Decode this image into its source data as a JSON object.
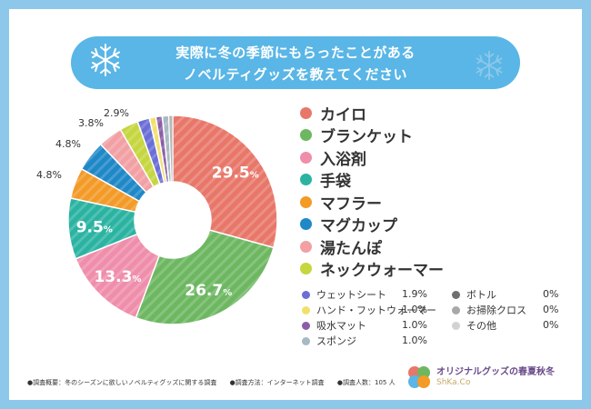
{
  "title": {
    "line1": "実際に冬の季節にもらったことがある",
    "line2": "ノベルティグッズを教えてください"
  },
  "colors": {
    "frame": "#8dc8ea",
    "title_bar": "#59b6e6"
  },
  "chart_data": {
    "type": "pie",
    "title": "実際に冬の季節にもらったことがあるノベルティグッズを教えてください",
    "unit": "%",
    "slices": [
      {
        "label": "カイロ",
        "value": 29.5,
        "color": "#e8776a",
        "display": "29.5",
        "show_inside": true
      },
      {
        "label": "ブランケット",
        "value": 26.7,
        "color": "#6db761",
        "display": "26.7",
        "show_inside": true
      },
      {
        "label": "入浴剤",
        "value": 13.3,
        "color": "#ef8eab",
        "display": "13.3",
        "show_inside": true
      },
      {
        "label": "手袋",
        "value": 9.5,
        "color": "#2bb3a2",
        "display": "9.5",
        "show_inside": true
      },
      {
        "label": "マフラー",
        "value": 4.8,
        "color": "#f39a27",
        "display": "4.8%",
        "show_inside": false
      },
      {
        "label": "マグカップ",
        "value": 4.8,
        "color": "#1f88c7",
        "display": "4.8%",
        "show_inside": false
      },
      {
        "label": "湯たんぽ",
        "value": 3.8,
        "color": "#f2a0a3",
        "display": "3.8%",
        "show_inside": false
      },
      {
        "label": "ネックウォーマー",
        "value": 2.9,
        "color": "#c5d63f",
        "display": "2.9%",
        "show_inside": false
      },
      {
        "label": "ウェットシート",
        "value": 1.9,
        "color": "#6a6ed6",
        "display": "1.9%",
        "show_inside": false
      },
      {
        "label": "ハンド・フットウォーマー",
        "value": 1.0,
        "color": "#f1e06b",
        "display": "1.0%",
        "show_inside": false
      },
      {
        "label": "吸水マット",
        "value": 1.0,
        "color": "#8c5ca8",
        "display": "1.0%",
        "show_inside": false
      },
      {
        "label": "スポンジ",
        "value": 1.0,
        "color": "#a7b9c3",
        "display": "1.0%",
        "show_inside": false
      },
      {
        "label": "ボトル",
        "value": 0,
        "color": "#6f6f6f",
        "display": "0%",
        "show_inside": false
      },
      {
        "label": "お掃除クロス",
        "value": 0,
        "color": "#a8a8a8",
        "display": "0%",
        "show_inside": false
      },
      {
        "label": "その他",
        "value": 0,
        "color": "#d2d2d2",
        "display": "0%",
        "show_inside": false
      }
    ]
  },
  "legend_main": [
    "カイロ",
    "ブランケット",
    "入浴剤",
    "手袋",
    "マフラー",
    "マグカップ",
    "湯たんぽ",
    "ネックウォーマー"
  ],
  "legend_small": {
    "left": [
      {
        "label": "ウェットシート",
        "value": "1.9%",
        "color": "#6a6ed6"
      },
      {
        "label": "ハンド・フットウォーマー",
        "value": "1.0%",
        "color": "#f1e06b"
      },
      {
        "label": "吸水マット",
        "value": "1.0%",
        "color": "#8c5ca8"
      },
      {
        "label": "スポンジ",
        "value": "1.0%",
        "color": "#a7b9c3"
      }
    ],
    "right": [
      {
        "label": "ボトル",
        "value": "0%",
        "color": "#6f6f6f"
      },
      {
        "label": "お掃除クロス",
        "value": "0%",
        "color": "#a8a8a8"
      },
      {
        "label": "その他",
        "value": "0%",
        "color": "#d2d2d2"
      }
    ]
  },
  "footer": {
    "overview": "●調査概要：冬のシーズンに欲しいノベルティグッズに関する調査",
    "method": "●調査方法：インターネット調査",
    "count": "●調査人数：105 人"
  },
  "brand": {
    "name": "オリジナルグッズの春夏秋冬",
    "sub": "ShKa.Co"
  }
}
